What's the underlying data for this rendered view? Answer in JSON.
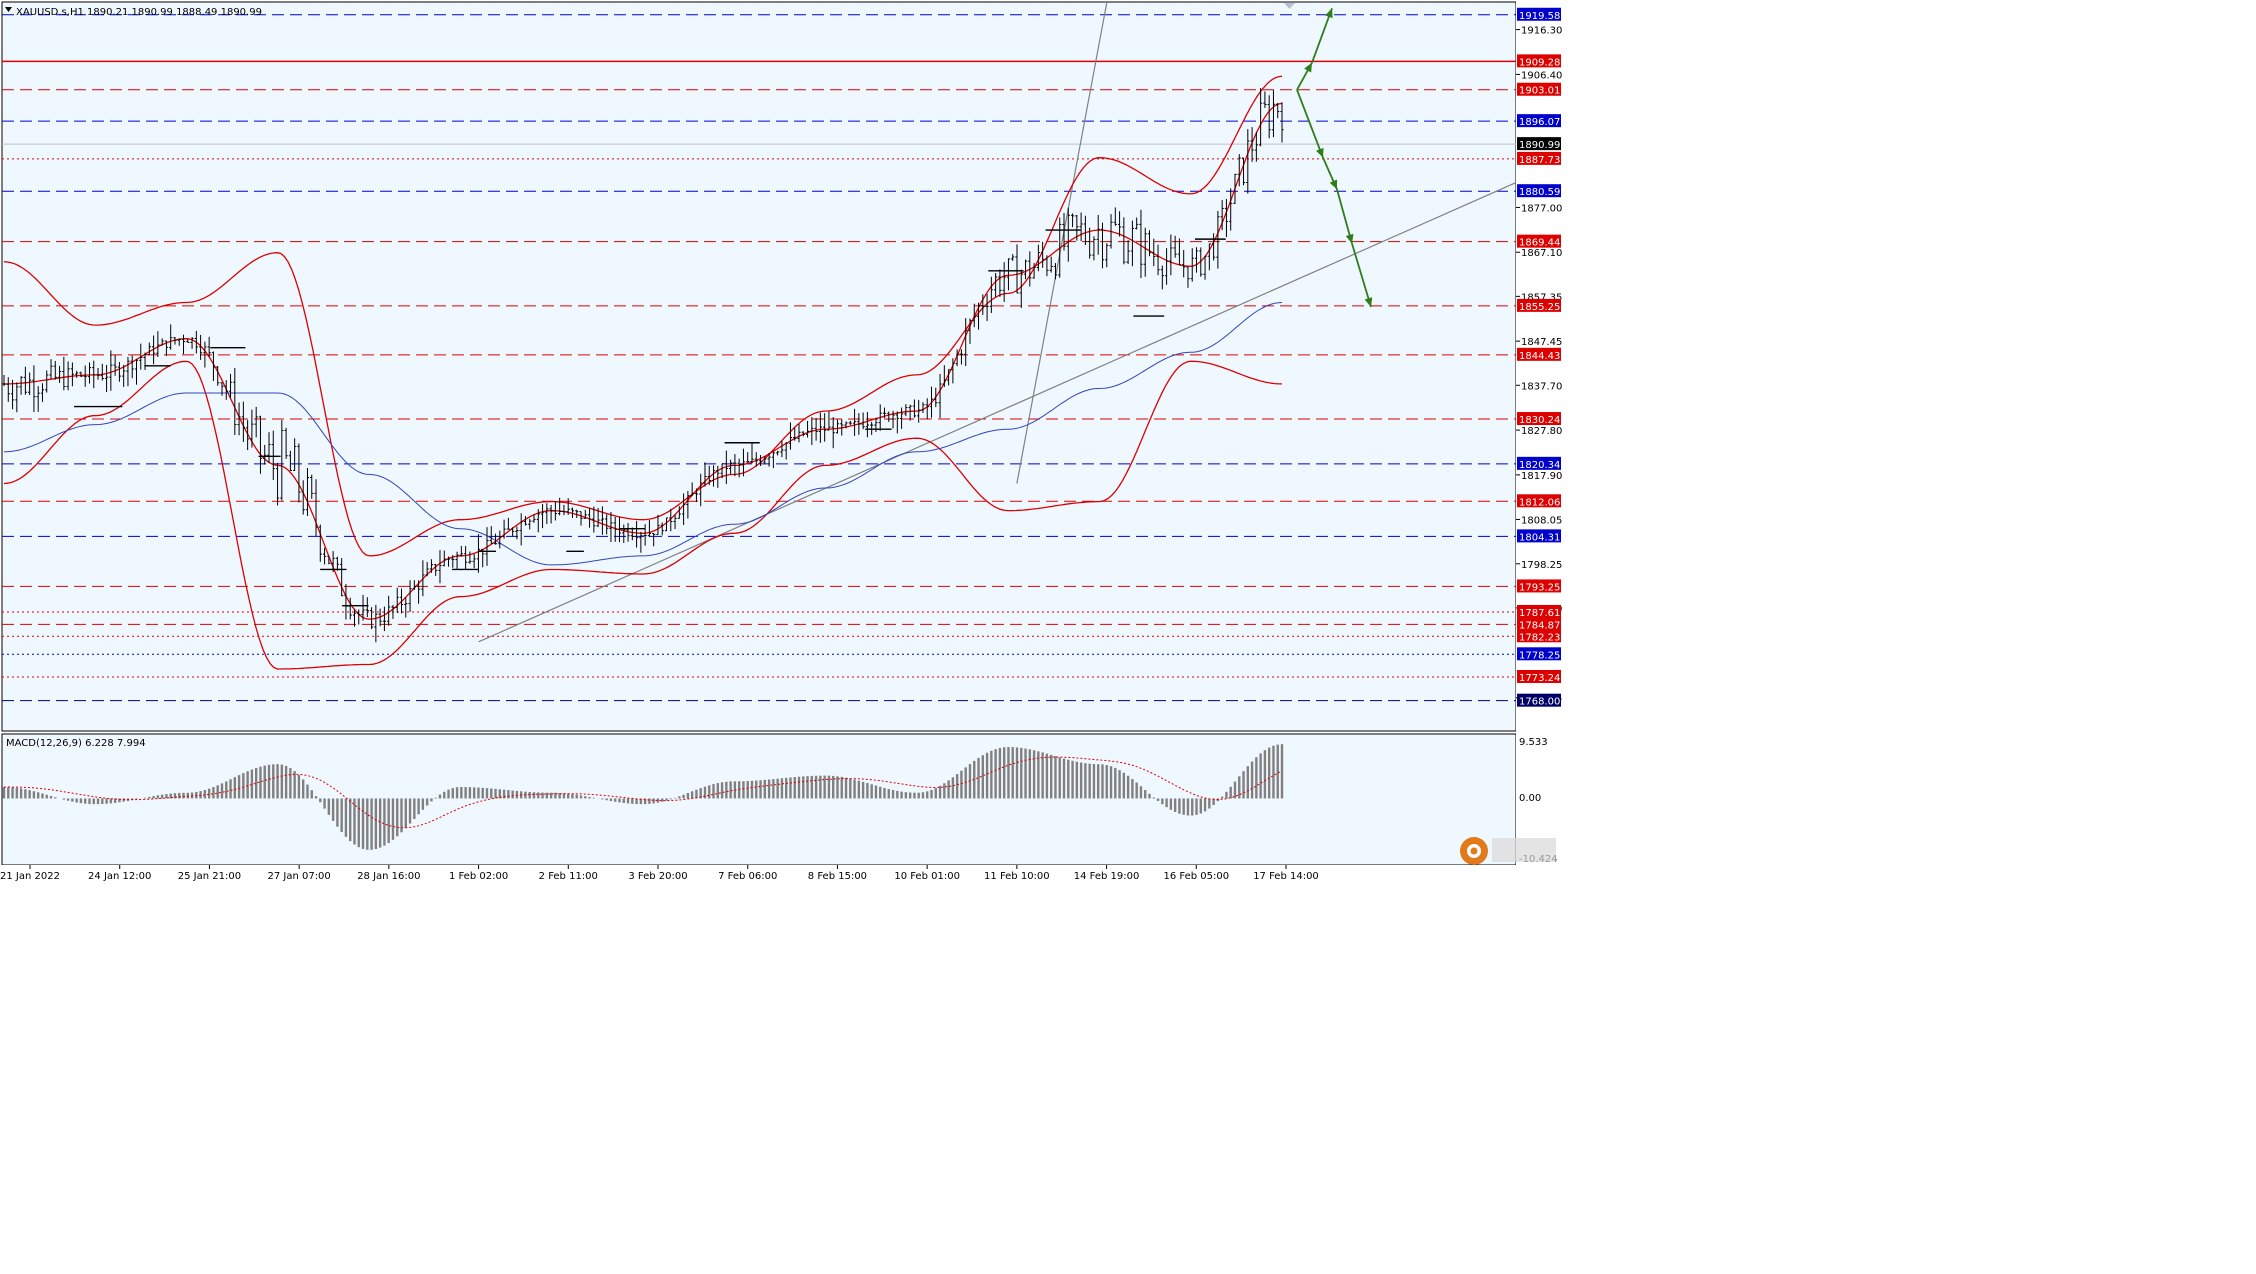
{
  "header": {
    "symbol_text": "XAUUSD.s,H1  1890.21 1890.99 1888.49 1890.99"
  },
  "macd": {
    "label": "MACD(12,26,9) 6.228 7.994",
    "scale_max": "9.533",
    "scale_zero": "0.00",
    "scale_min": "-10.424"
  },
  "time_axis": {
    "labels": [
      "21 Jan 2022",
      "24 Jan 12:00",
      "25 Jan 21:00",
      "27 Jan 07:00",
      "28 Jan 16:00",
      "1 Feb 02:00",
      "2 Feb 11:00",
      "3 Feb 20:00",
      "7 Feb 06:00",
      "8 Feb 15:00",
      "10 Feb 01:00",
      "11 Feb 10:00",
      "14 Feb 19:00",
      "16 Feb 05:00",
      "17 Feb 14:00"
    ]
  },
  "price_axis": {
    "ticks": [
      "1916.30",
      "1906.40",
      "1877.00",
      "1867.10",
      "1857.35",
      "1847.45",
      "1837.70",
      "1827.80",
      "1817.90",
      "1808.05",
      "1798.25",
      "1788.50",
      "1768.65"
    ]
  },
  "levels": [
    {
      "value": 1919.58,
      "label": "1919.58",
      "color": "#0000cc",
      "style": "dash",
      "tag": "#0000cc"
    },
    {
      "value": 1909.28,
      "label": "1909.28",
      "color": "#dd0000",
      "style": "solid",
      "tag": "#dd0000"
    },
    {
      "value": 1903.01,
      "label": "1903.01",
      "color": "#dd0000",
      "style": "dash",
      "tag": "#dd0000"
    },
    {
      "value": 1896.07,
      "label": "1896.07",
      "color": "#0000cc",
      "style": "dash",
      "tag": "#0000cc"
    },
    {
      "value": 1890.99,
      "label": "1890.99",
      "color": "#c0c0c0",
      "style": "solid",
      "tag": "#000000"
    },
    {
      "value": 1887.73,
      "label": "1887.73",
      "color": "#dd0000",
      "style": "dot",
      "tag": "#dd0000"
    },
    {
      "value": 1880.59,
      "label": "1880.59",
      "color": "#0000cc",
      "style": "dash",
      "tag": "#0000cc"
    },
    {
      "value": 1869.44,
      "label": "1869.44",
      "color": "#dd0000",
      "style": "dash",
      "tag": "#dd0000"
    },
    {
      "value": 1855.25,
      "label": "1855.25",
      "color": "#dd0000",
      "style": "dash",
      "tag": "#dd0000"
    },
    {
      "value": 1844.43,
      "label": "1844.43",
      "color": "#dd0000",
      "style": "dash",
      "tag": "#dd0000"
    },
    {
      "value": 1830.24,
      "label": "1830.24",
      "color": "#dd0000",
      "style": "dash",
      "tag": "#dd0000"
    },
    {
      "value": 1820.34,
      "label": "1820.34",
      "color": "#0000cc",
      "style": "dash",
      "tag": "#0000cc"
    },
    {
      "value": 1812.06,
      "label": "1812.06",
      "color": "#dd0000",
      "style": "dash",
      "tag": "#dd0000"
    },
    {
      "value": 1804.31,
      "label": "1804.31",
      "color": "#0000cc",
      "style": "dash",
      "tag": "#0000cc"
    },
    {
      "value": 1793.25,
      "label": "1793.25",
      "color": "#dd0000",
      "style": "dash",
      "tag": "#dd0000"
    },
    {
      "value": 1787.61,
      "label": "1787.61",
      "color": "#dd0000",
      "style": "dot",
      "tag": "#dd0000"
    },
    {
      "value": 1784.87,
      "label": "1784.87",
      "color": "#dd0000",
      "style": "dash",
      "tag": "#dd0000"
    },
    {
      "value": 1782.23,
      "label": "1782.23",
      "color": "#dd0000",
      "style": "dot",
      "tag": "#dd0000"
    },
    {
      "value": 1778.25,
      "label": "1778.25",
      "color": "#0000cc",
      "style": "dot",
      "tag": "#0000cc"
    },
    {
      "value": 1773.24,
      "label": "1773.24",
      "color": "#dd0000",
      "style": "dot",
      "tag": "#dd0000"
    },
    {
      "value": 1768.0,
      "label": "1768.00",
      "color": "#000066",
      "style": "dash",
      "tag": "#000066"
    }
  ],
  "chart_data": {
    "type": "line",
    "symbol": "XAUUSD.s",
    "timeframe": "H1",
    "ohlc_last": {
      "open": 1890.21,
      "high": 1890.99,
      "low": 1888.49,
      "close": 1890.99
    },
    "price_range": [
      1761.3,
      1922.4
    ],
    "x": [
      "21 Jan 2022",
      "24 Jan 12:00",
      "25 Jan 21:00",
      "27 Jan 07:00",
      "28 Jan 16:00",
      "1 Feb 02:00",
      "2 Feb 11:00",
      "3 Feb 20:00",
      "7 Feb 06:00",
      "8 Feb 15:00",
      "10 Feb 01:00",
      "11 Feb 10:00",
      "14 Feb 19:00",
      "16 Feb 05:00",
      "17 Feb 14:00"
    ],
    "series": [
      {
        "values": [
          1838,
          1840,
          1848,
          1820,
          1786,
          1800,
          1810,
          1805,
          1820,
          1828,
          1832,
          1862,
          1872,
          1864,
          1900
        ]
      },
      {
        "values": [
          1865,
          1851,
          1856,
          1867,
          1800,
          1808,
          1812,
          1808,
          1818,
          1832,
          1840,
          1858,
          1888,
          1880,
          1906
        ]
      },
      {
        "values": [
          1816,
          1831,
          1843,
          1775,
          1776,
          1791,
          1797,
          1796,
          1805,
          1820,
          1826,
          1810,
          1812,
          1843,
          1838
        ]
      },
      {
        "values": [
          1823,
          1829,
          1836,
          1836,
          1818,
          1806,
          1798,
          1800,
          1807,
          1815,
          1823,
          1828,
          1837,
          1845,
          1856
        ]
      }
    ],
    "trendlines": [
      {
        "from": [
          "1 Feb 02:00",
          1781
        ],
        "to": [
          "17 Feb 14:00",
          1860
        ]
      },
      {
        "from": [
          "11 Feb 10:00",
          1816
        ],
        "to": [
          "14 Feb 19:00",
          1922
        ]
      }
    ],
    "macd": {
      "params": [
        12,
        26,
        9
      ],
      "value": 6.228,
      "signal": 7.994,
      "range": [
        -10.424,
        9.533
      ],
      "histogram": [
        2,
        -1,
        1,
        6,
        -9,
        2,
        1,
        -1,
        3,
        4,
        1,
        9,
        6,
        -3,
        9.5
      ]
    }
  }
}
